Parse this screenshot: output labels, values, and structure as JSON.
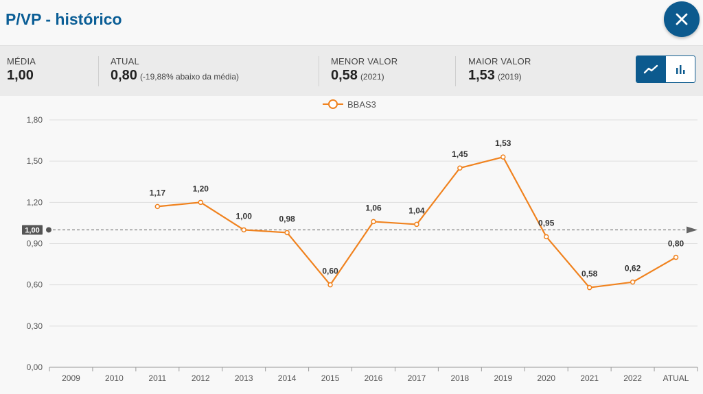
{
  "header": {
    "title": "P/VP - histórico",
    "close_icon": "close-icon"
  },
  "stats": {
    "media": {
      "label": "MÉDIA",
      "value": "1,00"
    },
    "atual": {
      "label": "ATUAL",
      "value": "0,80",
      "note": "(-19,88% abaixo da média)"
    },
    "menor": {
      "label": "MENOR VALOR",
      "value": "0,58",
      "note": "(2021)"
    },
    "maior": {
      "label": "MAIOR VALOR",
      "value": "1,53",
      "note": "(2019)"
    }
  },
  "view_toggle": {
    "active": "line",
    "options": [
      "line-chart-icon",
      "bar-chart-icon"
    ]
  },
  "colors": {
    "accent": "#0c5a8e",
    "series": "#f0821e",
    "title": "#0b5e96"
  },
  "chart_data": {
    "type": "line",
    "legend": "BBAS3",
    "legend_position": "top-center",
    "categories": [
      "2009",
      "2010",
      "2011",
      "2012",
      "2013",
      "2014",
      "2015",
      "2016",
      "2017",
      "2018",
      "2019",
      "2020",
      "2021",
      "2022",
      "ATUAL"
    ],
    "series": [
      {
        "name": "BBAS3",
        "values": [
          null,
          null,
          1.17,
          1.2,
          1.0,
          0.98,
          0.6,
          1.06,
          1.04,
          1.45,
          1.53,
          0.95,
          0.58,
          0.62,
          0.8
        ]
      }
    ],
    "data_labels": [
      null,
      null,
      "1,17",
      "1,20",
      "1,00",
      "0,98",
      "0,60",
      "1,06",
      "1,04",
      "1,45",
      "1,53",
      "0,95",
      "0,58",
      "0,62",
      "0,80"
    ],
    "y_ticks": [
      "0,00",
      "0,30",
      "0,60",
      "0,90",
      "1,20",
      "1,50",
      "1,80"
    ],
    "ylim": [
      0,
      1.8
    ],
    "grid": true,
    "reference_line": {
      "value": 1.0,
      "label": "1,00"
    }
  }
}
